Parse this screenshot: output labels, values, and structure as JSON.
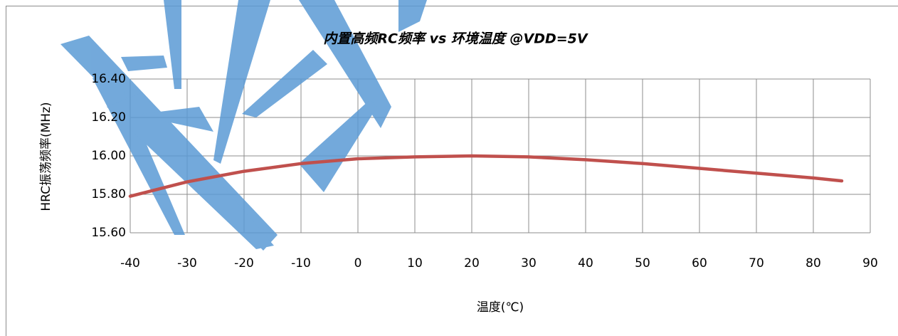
{
  "chart_data": {
    "type": "line",
    "title": "内置高频RC频率 vs 环境温度 @VDD=5V",
    "x_label": "温度(℃)",
    "y_label": "HRC振荡频率(MHz)",
    "x": [
      -40,
      -30,
      -20,
      -10,
      0,
      10,
      20,
      30,
      40,
      50,
      60,
      70,
      80,
      85
    ],
    "series": [
      {
        "name": "HRC",
        "color": "#c0504d",
        "values": [
          15.79,
          15.865,
          15.92,
          15.96,
          15.985,
          15.995,
          16.0,
          15.995,
          15.98,
          15.96,
          15.935,
          15.91,
          15.885,
          15.87
        ]
      }
    ],
    "xlim": [
      -40,
      90
    ],
    "xticks": [
      -40,
      -30,
      -20,
      -10,
      0,
      10,
      20,
      30,
      40,
      50,
      60,
      70,
      80,
      90
    ],
    "ylim": [
      15.6,
      16.4
    ],
    "yticks": [
      {
        "value": 15.6,
        "label": "15.60"
      },
      {
        "value": 15.8,
        "label": "15.80"
      },
      {
        "value": 16.0,
        "label": "16.00"
      },
      {
        "value": 16.2,
        "label": "16.20"
      },
      {
        "value": 16.4,
        "label": "16.40"
      }
    ],
    "grid": true
  }
}
